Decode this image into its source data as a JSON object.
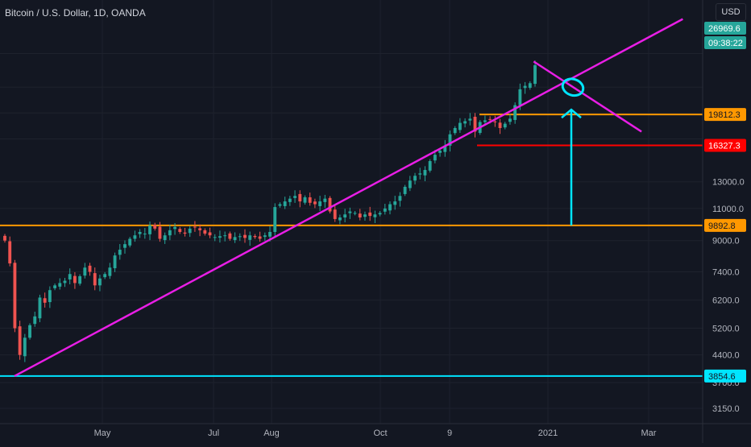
{
  "header": {
    "symbol_title": "Bitcoin / U.S. Dollar, 1D, OANDA",
    "currency_button": "USD"
  },
  "colors": {
    "background": "#131722",
    "grid": "#1e222d",
    "axis_text": "#b2b5be",
    "up_candle": "#26a69a",
    "down_candle": "#ef5350",
    "trendline": "#e91ee6",
    "orange_level": "#ff9800",
    "red_level": "#ff0000",
    "cyan": "#00e5ff",
    "last_price_bg": "#26a69a"
  },
  "chart_data": {
    "type": "candlestick",
    "scale": "log",
    "ylim": [
      2950,
      34000
    ],
    "x_tick_labels": [
      "May",
      "Jul",
      "Aug",
      "Oct",
      "9",
      "2021",
      "Mar"
    ],
    "y_tick_labels": [
      "3150.0",
      "3700.0",
      "4400.0",
      "5200.0",
      "6200.0",
      "7400.0",
      "9000.0",
      "11000.0",
      "13000.0"
    ],
    "price_labels": [
      {
        "text": "26969.6",
        "kind": "last_price"
      },
      {
        "text": "09:38:22",
        "kind": "countdown"
      },
      {
        "text": "19812.3",
        "kind": "orange"
      },
      {
        "text": "16327.3",
        "kind": "red"
      },
      {
        "text": "9892.8",
        "kind": "orange"
      },
      {
        "text": "3854.6",
        "kind": "cyan"
      }
    ],
    "horizontal_levels": [
      {
        "value": 19812.3,
        "color": "orange"
      },
      {
        "value": 16327.3,
        "color": "red"
      },
      {
        "value": 9892.8,
        "color": "orange"
      },
      {
        "value": 3854.6,
        "color": "cyan"
      }
    ],
    "candles_close_approx": [
      9000,
      7800,
      5200,
      4400,
      4900,
      5300,
      5600,
      6300,
      6100,
      6600,
      6800,
      6900,
      7000,
      7300,
      6900,
      7200,
      7600,
      7400,
      6800,
      7100,
      7300,
      7600,
      8200,
      8500,
      8800,
      9100,
      9300,
      9500,
      9400,
      9900,
      9700,
      9100,
      9300,
      9600,
      9800,
      9500,
      9400,
      9700,
      9800,
      9600,
      9400,
      9300,
      9200,
      9250,
      9300,
      9100,
      9200,
      9250,
      9150,
      9300,
      9200,
      9100,
      9300,
      9500,
      11100,
      11300,
      11500,
      11700,
      11900,
      11500,
      11800,
      11400,
      11300,
      11500,
      11700,
      10800,
      10300,
      10400,
      10600,
      10800,
      10700,
      10400,
      10600,
      10500,
      10600,
      10700,
      11000,
      11300,
      11500,
      11900,
      12600,
      13100,
      13500,
      13700,
      14000,
      14800,
      15400,
      15800,
      16300,
      17500,
      18200,
      18800,
      19000,
      19300,
      17800,
      18900,
      19100,
      19200,
      18900,
      18200,
      18700,
      19300,
      21000,
      23200,
      23700,
      24100,
      26969.6
    ],
    "annotations": [
      {
        "type": "trendline",
        "color": "magenta",
        "from": {
          "date": "2020-03-13",
          "price": 3854.6
        },
        "to": {
          "date": "2021-03-20",
          "price": 36000
        }
      },
      {
        "type": "trendline",
        "color": "magenta",
        "from": {
          "date": "2020-12-27",
          "price": 27600
        },
        "to": {
          "date": "2021-02-25",
          "price": 17800
        }
      },
      {
        "type": "arrow_up",
        "color": "cyan",
        "from_price": 9892.8,
        "to_price": 19812.3
      },
      {
        "type": "ellipse",
        "color": "cyan",
        "price": 23500
      }
    ]
  }
}
